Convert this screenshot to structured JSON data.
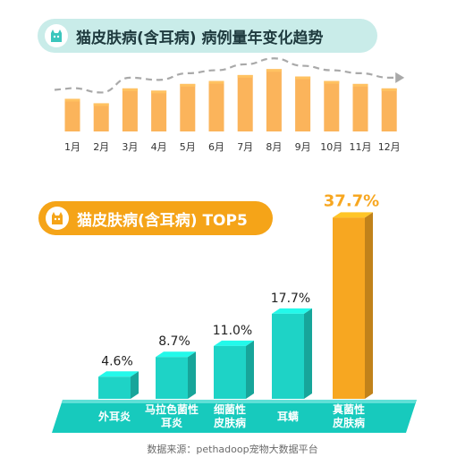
{
  "charts": [
    {
      "type": "bar",
      "title": "猫皮肤病(含耳病) 病例量年变化趋势",
      "icon": "cat-icon",
      "categories": [
        "1月",
        "2月",
        "3月",
        "4月",
        "5月",
        "6月",
        "7月",
        "8月",
        "9月",
        "10月",
        "11月",
        "12月"
      ],
      "values": [
        44,
        38,
        58,
        55,
        64,
        68,
        76,
        84,
        74,
        68,
        64,
        58
      ],
      "ylim": [
        0,
        100
      ],
      "value_unit": "relative",
      "trend_line": "dashed",
      "grid": false,
      "bar_color": "#fbb45b"
    },
    {
      "type": "bar",
      "title": "猫皮肤病(含耳病) TOP5",
      "icon": "cat-icon",
      "categories": [
        "外耳炎",
        "马拉色菌性耳炎",
        "细菌性皮肤病",
        "耳螨",
        "真菌性皮肤病"
      ],
      "category_lines": [
        [
          "外耳炎"
        ],
        [
          "马拉色菌性",
          "耳炎"
        ],
        [
          "细菌性",
          "皮肤病"
        ],
        [
          "耳螨"
        ],
        [
          "真菌性",
          "皮肤病"
        ]
      ],
      "values": [
        4.6,
        8.7,
        11.0,
        17.7,
        37.7
      ],
      "value_labels": [
        "4.6%",
        "8.7%",
        "11.0%",
        "17.7%",
        "37.7%"
      ],
      "ylim": [
        0,
        40
      ],
      "highlight_index": 4,
      "bar_color": "#1ed3c6",
      "highlight_color": "#f7a721"
    }
  ],
  "source": "数据来源：pethadoop宠物大数据平台"
}
